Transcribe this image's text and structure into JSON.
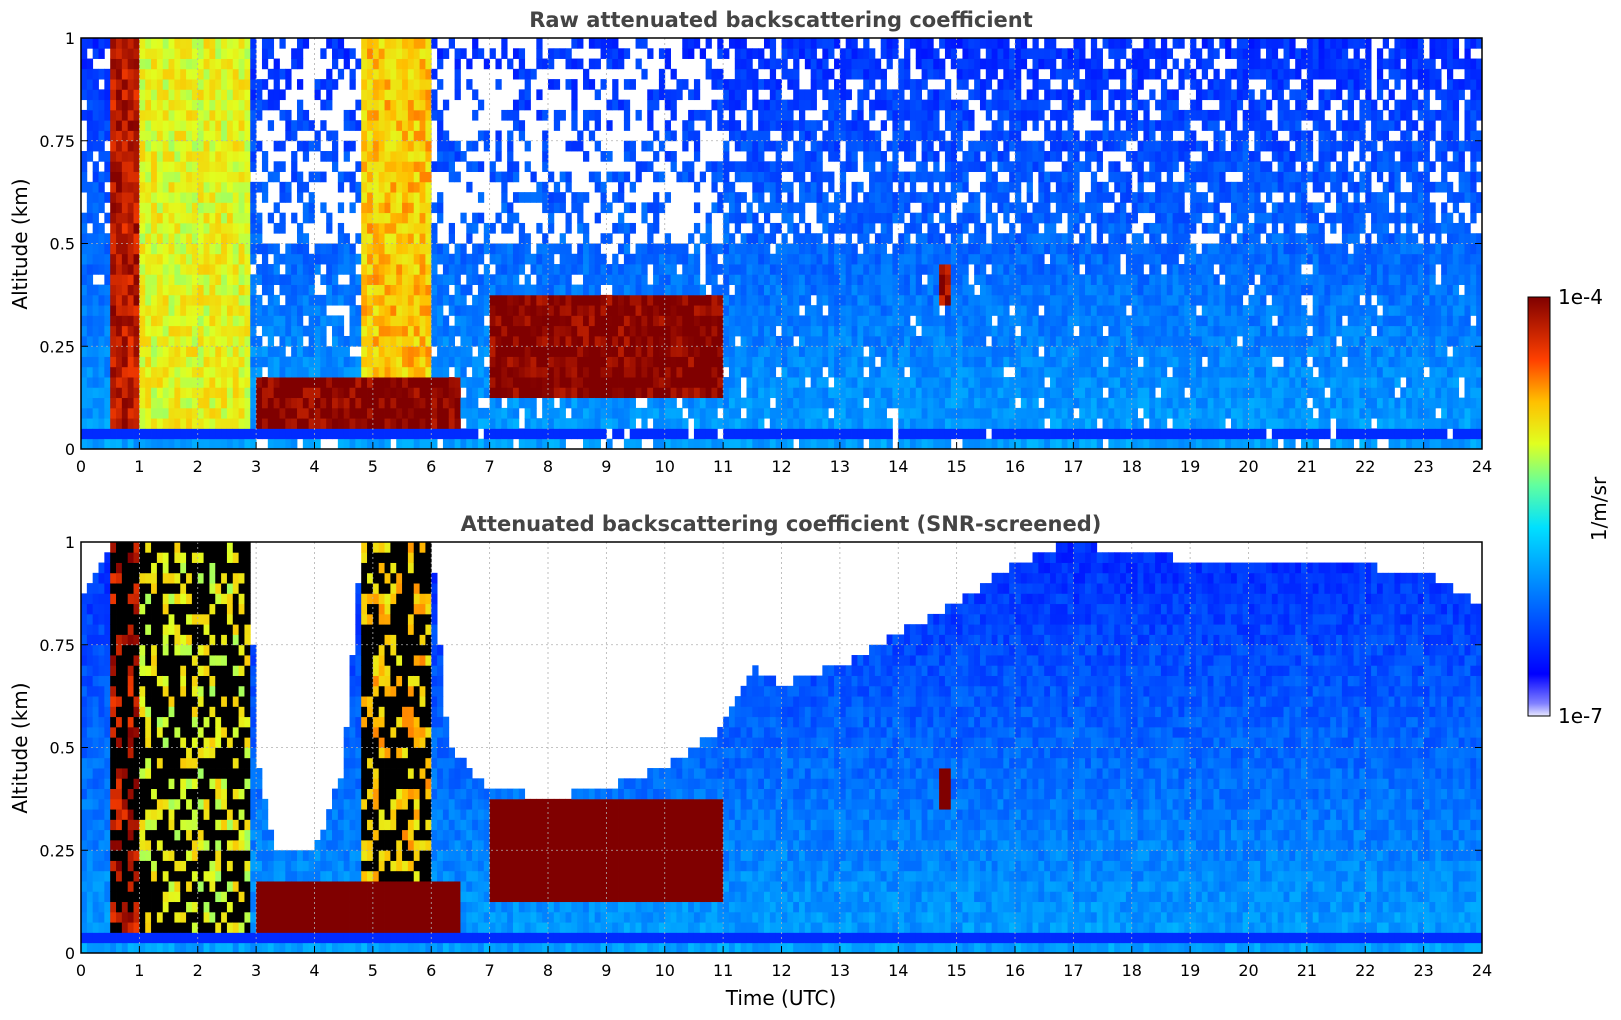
{
  "figure": {
    "colorbar": {
      "label": "1/m/sr",
      "max_label": "1e-4",
      "min_label": "1e-7",
      "scale": "log",
      "range": [
        1e-07,
        0.0001
      ],
      "colormap": "jet"
    }
  },
  "chart_data": [
    {
      "type": "heatmap",
      "title": "Raw attenuated backscattering coefficient",
      "xlabel": "",
      "ylabel": "Altitude (km)",
      "xlim": [
        0,
        24
      ],
      "ylim": [
        0,
        1
      ],
      "xticks": [
        "0",
        "1",
        "2",
        "3",
        "4",
        "5",
        "6",
        "7",
        "8",
        "9",
        "10",
        "11",
        "12",
        "13",
        "14",
        "15",
        "16",
        "17",
        "18",
        "19",
        "20",
        "21",
        "22",
        "23",
        "24"
      ],
      "yticks": [
        "0",
        "0.25",
        "0.5",
        "0.75",
        "1"
      ],
      "grid": true,
      "features": [
        {
          "time": [
            0.5,
            1.0
          ],
          "alt": [
            0.04,
            1.0
          ],
          "log10_beta": -4.2
        },
        {
          "time": [
            1.0,
            2.9
          ],
          "alt": [
            0.04,
            1.0
          ],
          "log10_beta": -5.0
        },
        {
          "time": [
            4.8,
            6.0
          ],
          "alt": [
            0.04,
            1.0
          ],
          "log10_beta": -4.8
        },
        {
          "time": [
            3.0,
            6.5
          ],
          "alt": [
            0.03,
            0.17
          ],
          "log10_beta": -4.0
        },
        {
          "time": [
            7.0,
            11.0
          ],
          "alt": [
            0.12,
            0.38
          ],
          "log10_beta": -4.0
        },
        {
          "time": [
            14.7,
            14.9
          ],
          "alt": [
            0.36,
            0.44
          ],
          "log10_beta": -4.1
        }
      ]
    },
    {
      "type": "heatmap",
      "title": "Attenuated backscattering coefficient (SNR-screened)",
      "xlabel": "Time (UTC)",
      "ylabel": "Altitude (km)",
      "xlim": [
        0,
        24
      ],
      "ylim": [
        0,
        1
      ],
      "xticks": [
        "0",
        "1",
        "2",
        "3",
        "4",
        "5",
        "6",
        "7",
        "8",
        "9",
        "10",
        "11",
        "12",
        "13",
        "14",
        "15",
        "16",
        "17",
        "18",
        "19",
        "20",
        "21",
        "22",
        "23",
        "24"
      ],
      "yticks": [
        "0",
        "0.25",
        "0.5",
        "0.75",
        "1"
      ],
      "grid": true,
      "screened_top_km": [
        [
          0,
          0.85
        ],
        [
          0.5,
          1.0
        ],
        [
          2.9,
          1.0
        ],
        [
          3.0,
          0.5
        ],
        [
          3.3,
          0.25
        ],
        [
          4.0,
          0.25
        ],
        [
          4.5,
          0.45
        ],
        [
          4.8,
          1.0
        ],
        [
          6.0,
          1.0
        ],
        [
          6.3,
          0.5
        ],
        [
          7.0,
          0.4
        ],
        [
          8.0,
          0.38
        ],
        [
          9.0,
          0.4
        ],
        [
          10.0,
          0.45
        ],
        [
          11.0,
          0.55
        ],
        [
          11.5,
          0.7
        ],
        [
          12.0,
          0.65
        ],
        [
          13.0,
          0.7
        ],
        [
          14.0,
          0.78
        ],
        [
          15.0,
          0.85
        ],
        [
          16.0,
          0.95
        ],
        [
          17.0,
          1.0
        ],
        [
          18.0,
          0.97
        ],
        [
          19.0,
          0.96
        ],
        [
          20.0,
          0.95
        ],
        [
          21.0,
          0.94
        ],
        [
          22.0,
          0.94
        ],
        [
          23.0,
          0.93
        ],
        [
          23.9,
          0.85
        ]
      ],
      "features": [
        {
          "time": [
            0.5,
            1.0
          ],
          "alt": [
            0.04,
            1.0
          ],
          "log10_beta": -4.2
        },
        {
          "time": [
            1.0,
            2.9
          ],
          "alt": [
            0.04,
            1.0
          ],
          "log10_beta": -5.0
        },
        {
          "time": [
            4.8,
            6.0
          ],
          "alt": [
            0.04,
            1.0
          ],
          "log10_beta": -4.8
        },
        {
          "time": [
            3.0,
            6.5
          ],
          "alt": [
            0.03,
            0.17
          ],
          "log10_beta": -3.8
        },
        {
          "time": [
            7.0,
            11.0
          ],
          "alt": [
            0.12,
            0.38
          ],
          "log10_beta": -3.8
        },
        {
          "time": [
            14.7,
            14.9
          ],
          "alt": [
            0.36,
            0.44
          ],
          "log10_beta": -3.8
        }
      ]
    }
  ]
}
